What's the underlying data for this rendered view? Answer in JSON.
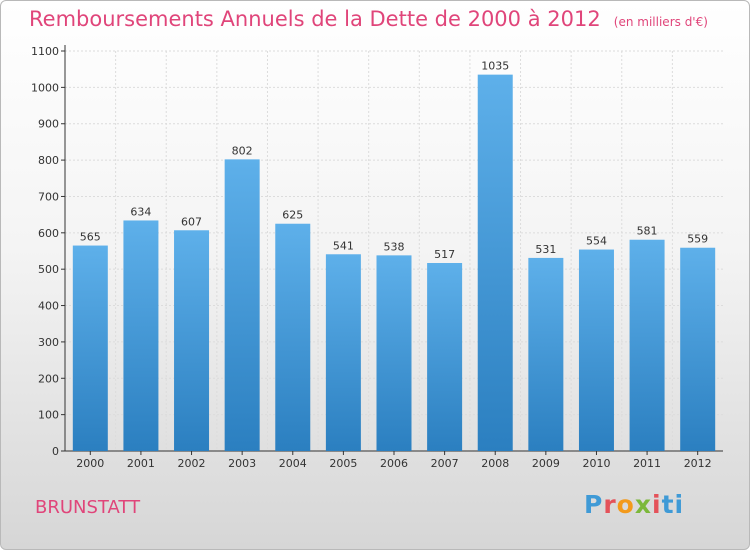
{
  "title": "Remboursements Annuels de la Dette de 2000 à 2012",
  "subtitle": "(en milliers d'€)",
  "town": "BRUNSTATT",
  "logo": {
    "letters": [
      "P",
      "r",
      "o",
      "x",
      "i",
      "t",
      "i"
    ],
    "colors": [
      "#3f9ad6",
      "#e4525a",
      "#f39a1b",
      "#7cb83a",
      "#e4525a",
      "#3f9ad6",
      "#3f9ad6"
    ]
  },
  "colors": {
    "bar_top": "#5eb0ea",
    "bar_bottom": "#2b7fc0",
    "accent": "#e0457a"
  },
  "chart_data": {
    "type": "bar",
    "categories": [
      "2000",
      "2001",
      "2002",
      "2003",
      "2004",
      "2005",
      "2006",
      "2007",
      "2008",
      "2009",
      "2010",
      "2011",
      "2012"
    ],
    "values": [
      565,
      634,
      607,
      802,
      625,
      541,
      538,
      517,
      1035,
      531,
      554,
      581,
      559
    ],
    "yticks": [
      0,
      100,
      200,
      300,
      400,
      500,
      600,
      700,
      800,
      900,
      1000,
      1100
    ],
    "ylim": [
      0,
      1100
    ],
    "grid": true,
    "title": "Remboursements Annuels de la Dette de 2000 à 2012",
    "xlabel": "",
    "ylabel": ""
  }
}
